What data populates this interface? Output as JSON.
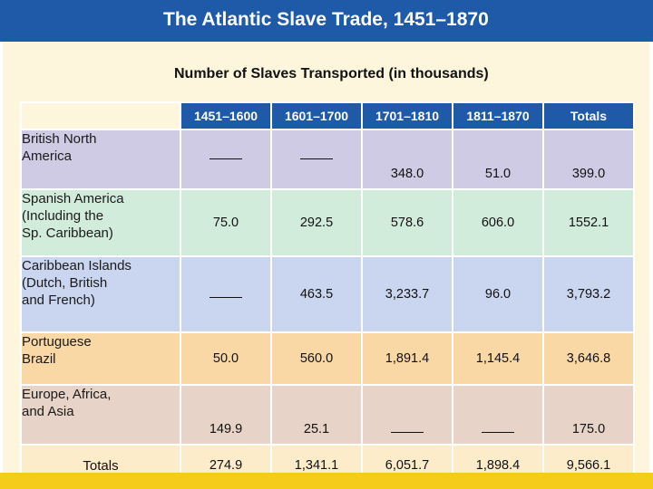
{
  "title": "The Atlantic Slave Trade, 1451–1870",
  "subtitle": "Number of Slaves Transported (in thousands)",
  "columns": [
    "1451–1600",
    "1601–1700",
    "1701–1810",
    "1811–1870",
    "Totals"
  ],
  "rows": [
    {
      "region": "British North\nAmerica",
      "values": [
        "—",
        "—",
        "348.0",
        "51.0",
        "399.0"
      ]
    },
    {
      "region": "Spanish America\n(Including the\nSp. Caribbean)",
      "values": [
        "75.0",
        "292.5",
        "578.6",
        "606.0",
        "1552.1"
      ]
    },
    {
      "region": "Caribbean Islands\n(Dutch, British\nand French)",
      "values": [
        "—",
        "463.5",
        "3,233.7",
        "96.0",
        "3,793.2"
      ]
    },
    {
      "region": "Portuguese\nBrazil",
      "values": [
        "50.0",
        "560.0",
        "1,891.4",
        "1,145.4",
        "3,646.8"
      ]
    },
    {
      "region": "Europe, Africa,\nand Asia",
      "values": [
        "149.9",
        "25.1",
        "—",
        "—",
        "175.0"
      ]
    }
  ],
  "totals": {
    "label": "Totals",
    "values": [
      "274.9",
      "1,341.1",
      "6,051.7",
      "1,898.4",
      "9,566.1"
    ]
  },
  "colors": {
    "title_bar": "#1e5aa8",
    "header": "#1e5aa8",
    "footer_bar": "#f5cc1a",
    "panel": "#fdf6dc",
    "row_backgrounds": [
      "#d0cbe5",
      "#d2ecdc",
      "#cad5ef",
      "#f9d8a6",
      "#e7d3c7",
      "#fcecc9"
    ]
  }
}
